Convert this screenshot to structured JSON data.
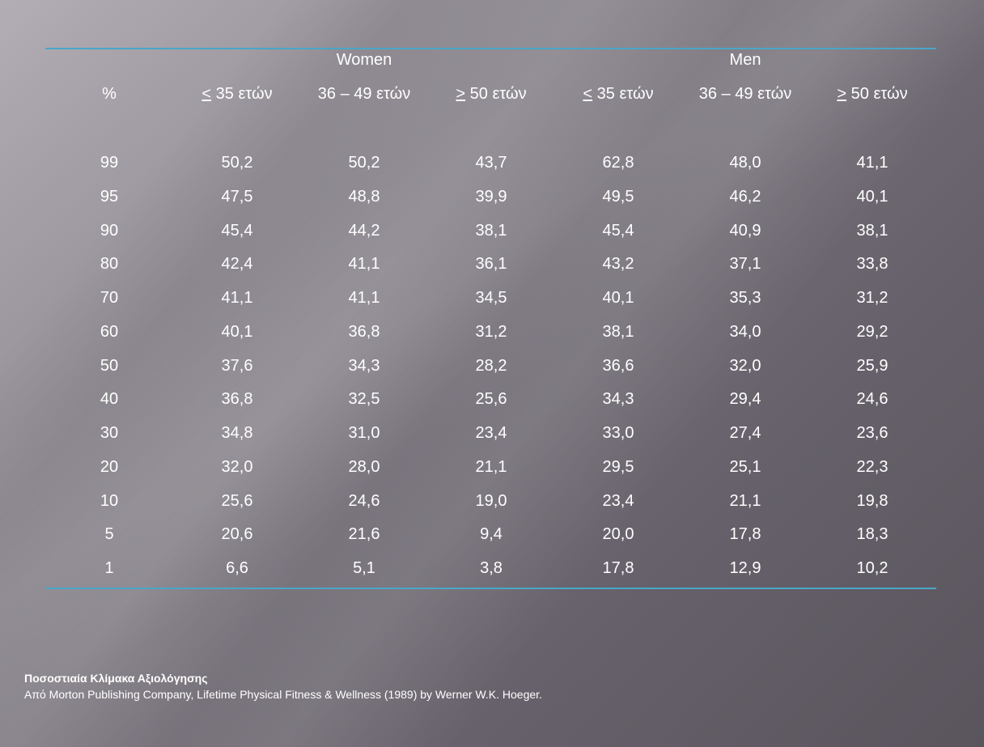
{
  "table": {
    "group_headers": [
      "Women",
      "Men"
    ],
    "col_headers": [
      {
        "prefix": "",
        "text": "%"
      },
      {
        "prefix": "<",
        "text": " 35 ετών"
      },
      {
        "prefix": "",
        "text": "36 – 49 ετών"
      },
      {
        "prefix": ">",
        "text": " 50 ετών"
      },
      {
        "prefix": "<",
        "text": " 35 ετών"
      },
      {
        "prefix": "",
        "text": "36 – 49 ετών"
      },
      {
        "prefix": ">",
        "text": " 50 ετών"
      }
    ],
    "rows": [
      [
        "99",
        "50,2",
        "50,2",
        "43,7",
        "62,8",
        "48,0",
        "41,1"
      ],
      [
        "95",
        "47,5",
        "48,8",
        "39,9",
        "49,5",
        "46,2",
        "40,1"
      ],
      [
        "90",
        "45,4",
        "44,2",
        "38,1",
        "45,4",
        "40,9",
        "38,1"
      ],
      [
        "80",
        "42,4",
        "41,1",
        "36,1",
        "43,2",
        "37,1",
        "33,8"
      ],
      [
        "70",
        "41,1",
        "41,1",
        "34,5",
        "40,1",
        "35,3",
        "31,2"
      ],
      [
        "60",
        "40,1",
        "36,8",
        "31,2",
        "38,1",
        "34,0",
        "29,2"
      ],
      [
        "50",
        "37,6",
        "34,3",
        "28,2",
        "36,6",
        "32,0",
        "25,9"
      ],
      [
        "40",
        "36,8",
        "32,5",
        "25,6",
        "34,3",
        "29,4",
        "24,6"
      ],
      [
        "30",
        "34,8",
        "31,0",
        "23,4",
        "33,0",
        "27,4",
        "23,6"
      ],
      [
        "20",
        "32,0",
        "28,0",
        "21,1",
        "29,5",
        "25,1",
        "22,3"
      ],
      [
        "10",
        "25,6",
        "24,6",
        "19,0",
        "23,4",
        "21,1",
        "19,8"
      ],
      [
        "5",
        "20,6",
        "21,6",
        "9,4",
        "20,0",
        "17,8",
        "18,3"
      ],
      [
        "1",
        "6,6",
        "5,1",
        "3,8",
        "17,8",
        "12,9",
        "10,2"
      ]
    ]
  },
  "footnote": {
    "title": "Ποσοστιαία Κλίμακα Αξιολόγησης",
    "source": "Από Morton Publishing Company, Lifetime Physical Fitness & Wellness (1989) by Werner W.K. Hoeger."
  },
  "colors": {
    "rule": "#4aa6c8",
    "text": "#ffffff"
  }
}
